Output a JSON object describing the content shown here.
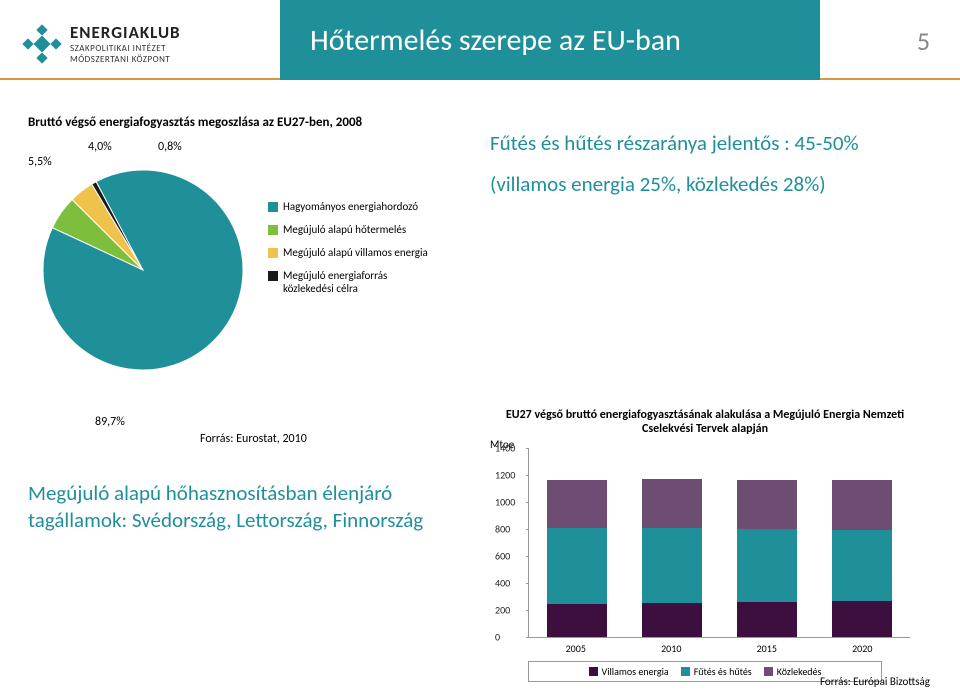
{
  "header": {
    "brand": "ENERGIAKLUB",
    "sub1": "SZAKPOLITIKAI INTÉZET",
    "sub2": "MÓDSZERTANI KÖZPONT",
    "title": "Hőtermelés szerepe az EU-ban",
    "page": "5",
    "title_bg": "#1f8f9a",
    "underline": "#d49a3a"
  },
  "pie": {
    "title": "Bruttó végső energiafogyasztás megoszlása az EU27-ben, 2008",
    "slices": [
      {
        "label": "Hagyományos energiahordozó",
        "value": 89.7,
        "pct": "89,7%",
        "color": "#1f8f9a"
      },
      {
        "label": "Megújuló alapú hőtermelés",
        "value": 5.5,
        "pct": "5,5%",
        "color": "#7dbf3d"
      },
      {
        "label": "Megújuló alapú villamos energia",
        "value": 4.0,
        "pct": "4,0%",
        "color": "#efc24b"
      },
      {
        "label": "Megújuló energiaforrás közlekedési célra",
        "value": 0.8,
        "pct": "0,8%",
        "color": "#1a1a1a"
      }
    ],
    "radius": 100,
    "source": "Forrás: Eurostat, 2010"
  },
  "right_text": {
    "line1": "Fűtés és hűtés részaránya jelentős : 45-50%",
    "line2": "(villamos energia 25%, közlekedés 28%)"
  },
  "bottom_left": "Megújuló alapú hőhasznosításban élenjáró tagállamok: Svédország, Lettország, Finnország",
  "bar": {
    "title": "EU27 végső bruttó energiafogyasztásának alakulása a Megújuló Energia Nemzeti Cselekvési Tervek alapján",
    "ylabel": "Mtoe",
    "ymax": 1400,
    "ytick_step": 200,
    "categories": [
      "2005",
      "2010",
      "2015",
      "2020"
    ],
    "series": [
      {
        "name": "Villamos energia",
        "color": "#3d0f3f"
      },
      {
        "name": "Fűtés és hűtés",
        "color": "#1f8f9a"
      },
      {
        "name": "Közlekedés",
        "color": "#6d4d71"
      }
    ],
    "data": [
      {
        "villamos": 240,
        "futes": 560,
        "kozlekedes": 360
      },
      {
        "villamos": 250,
        "futes": 555,
        "kozlekedes": 360
      },
      {
        "villamos": 255,
        "futes": 540,
        "kozlekedes": 365
      },
      {
        "villamos": 265,
        "futes": 520,
        "kozlekedes": 370
      }
    ],
    "source": "Forrás: Európai Bizottság"
  }
}
